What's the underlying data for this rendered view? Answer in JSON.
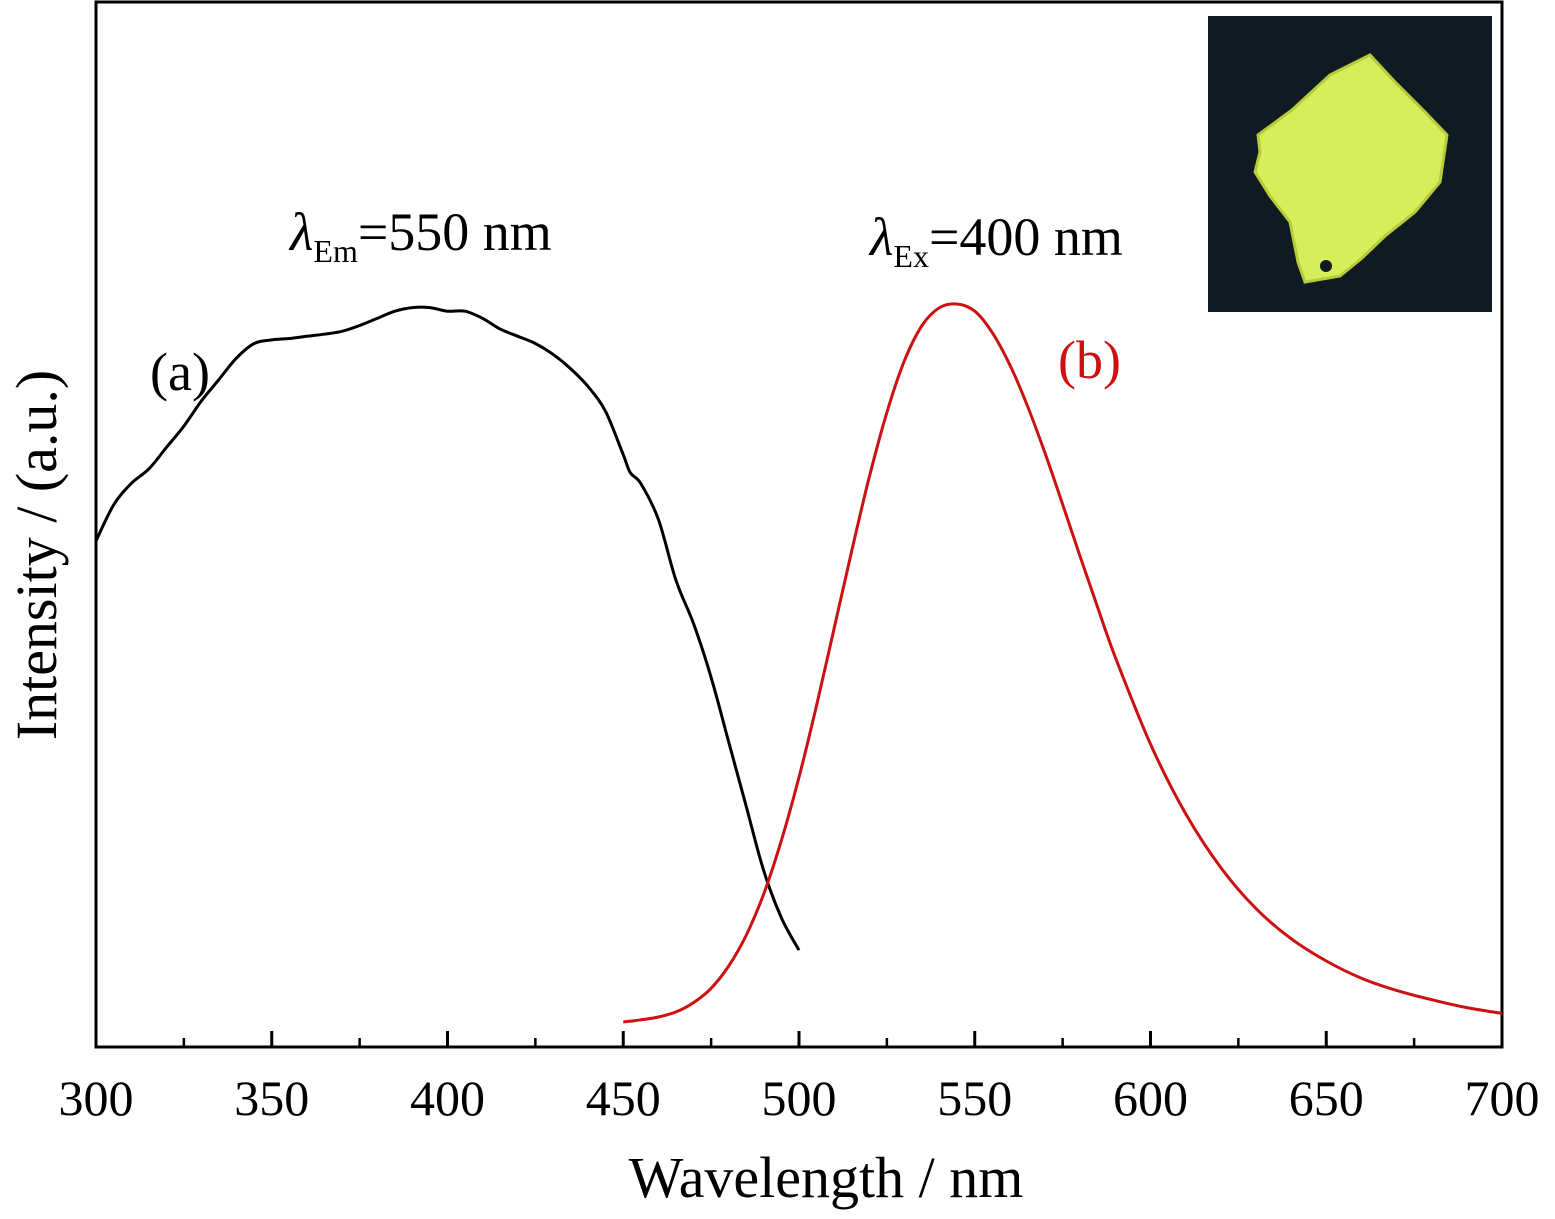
{
  "chart_data": {
    "type": "line",
    "xlabel": "Wavelength / nm",
    "ylabel": "Intensity / (a.u.)",
    "xlim": [
      300,
      700
    ],
    "x_ticks": [
      "300",
      "350",
      "400",
      "450",
      "500",
      "550",
      "600",
      "650",
      "700"
    ],
    "y_ticks_shown": false,
    "grid": false,
    "series": [
      {
        "name": "(a)",
        "color": "#000000",
        "points": [
          [
            300,
            0.67
          ],
          [
            305,
            0.72
          ],
          [
            310,
            0.75
          ],
          [
            315,
            0.77
          ],
          [
            320,
            0.8
          ],
          [
            325,
            0.83
          ],
          [
            330,
            0.865
          ],
          [
            335,
            0.895
          ],
          [
            340,
            0.925
          ],
          [
            345,
            0.945
          ],
          [
            350,
            0.95
          ],
          [
            355,
            0.952
          ],
          [
            360,
            0.955
          ],
          [
            365,
            0.958
          ],
          [
            370,
            0.962
          ],
          [
            375,
            0.97
          ],
          [
            380,
            0.98
          ],
          [
            385,
            0.99
          ],
          [
            390,
            0.995
          ],
          [
            395,
            0.995
          ],
          [
            400,
            0.99
          ],
          [
            405,
            0.99
          ],
          [
            410,
            0.98
          ],
          [
            415,
            0.965
          ],
          [
            420,
            0.955
          ],
          [
            425,
            0.945
          ],
          [
            430,
            0.93
          ],
          [
            435,
            0.91
          ],
          [
            440,
            0.885
          ],
          [
            445,
            0.85
          ],
          [
            450,
            0.79
          ],
          [
            452,
            0.765
          ],
          [
            455,
            0.75
          ],
          [
            460,
            0.7
          ],
          [
            465,
            0.615
          ],
          [
            470,
            0.555
          ],
          [
            475,
            0.48
          ],
          [
            480,
            0.39
          ],
          [
            485,
            0.3
          ],
          [
            490,
            0.21
          ],
          [
            495,
            0.145
          ],
          [
            500,
            0.1
          ]
        ]
      },
      {
        "name": "(b)",
        "color": "#cc1111",
        "points": [
          [
            450,
            0.0
          ],
          [
            455,
            0.003
          ],
          [
            460,
            0.007
          ],
          [
            465,
            0.014
          ],
          [
            470,
            0.027
          ],
          [
            475,
            0.047
          ],
          [
            480,
            0.078
          ],
          [
            485,
            0.121
          ],
          [
            490,
            0.179
          ],
          [
            495,
            0.253
          ],
          [
            500,
            0.341
          ],
          [
            505,
            0.441
          ],
          [
            510,
            0.548
          ],
          [
            515,
            0.656
          ],
          [
            520,
            0.759
          ],
          [
            525,
            0.849
          ],
          [
            530,
            0.921
          ],
          [
            535,
            0.97
          ],
          [
            540,
            0.995
          ],
          [
            545,
            1.0
          ],
          [
            550,
            0.99
          ],
          [
            555,
            0.96
          ],
          [
            560,
            0.915
          ],
          [
            565,
            0.858
          ],
          [
            570,
            0.792
          ],
          [
            575,
            0.721
          ],
          [
            580,
            0.648
          ],
          [
            585,
            0.577
          ],
          [
            590,
            0.508
          ],
          [
            600,
            0.387
          ],
          [
            610,
            0.29
          ],
          [
            620,
            0.215
          ],
          [
            630,
            0.158
          ],
          [
            640,
            0.116
          ],
          [
            650,
            0.085
          ],
          [
            660,
            0.061
          ],
          [
            670,
            0.044
          ],
          [
            680,
            0.031
          ],
          [
            690,
            0.02
          ],
          [
            700,
            0.012
          ]
        ]
      }
    ],
    "annotations": [
      {
        "id": "a",
        "text": "(a)",
        "color": "#000000"
      },
      {
        "id": "b",
        "text": "(b)",
        "color": "#cc1111"
      },
      {
        "id": "em",
        "symbol": "λ",
        "sub": "Em",
        "rest": "=550 nm"
      },
      {
        "id": "ex",
        "symbol": "λ",
        "sub": "Ex",
        "rest": "=400 nm"
      }
    ],
    "inset": {
      "kind": "photo",
      "description_color_bg": "#0f1a23",
      "description_color_fg": "#d8f05a"
    }
  }
}
